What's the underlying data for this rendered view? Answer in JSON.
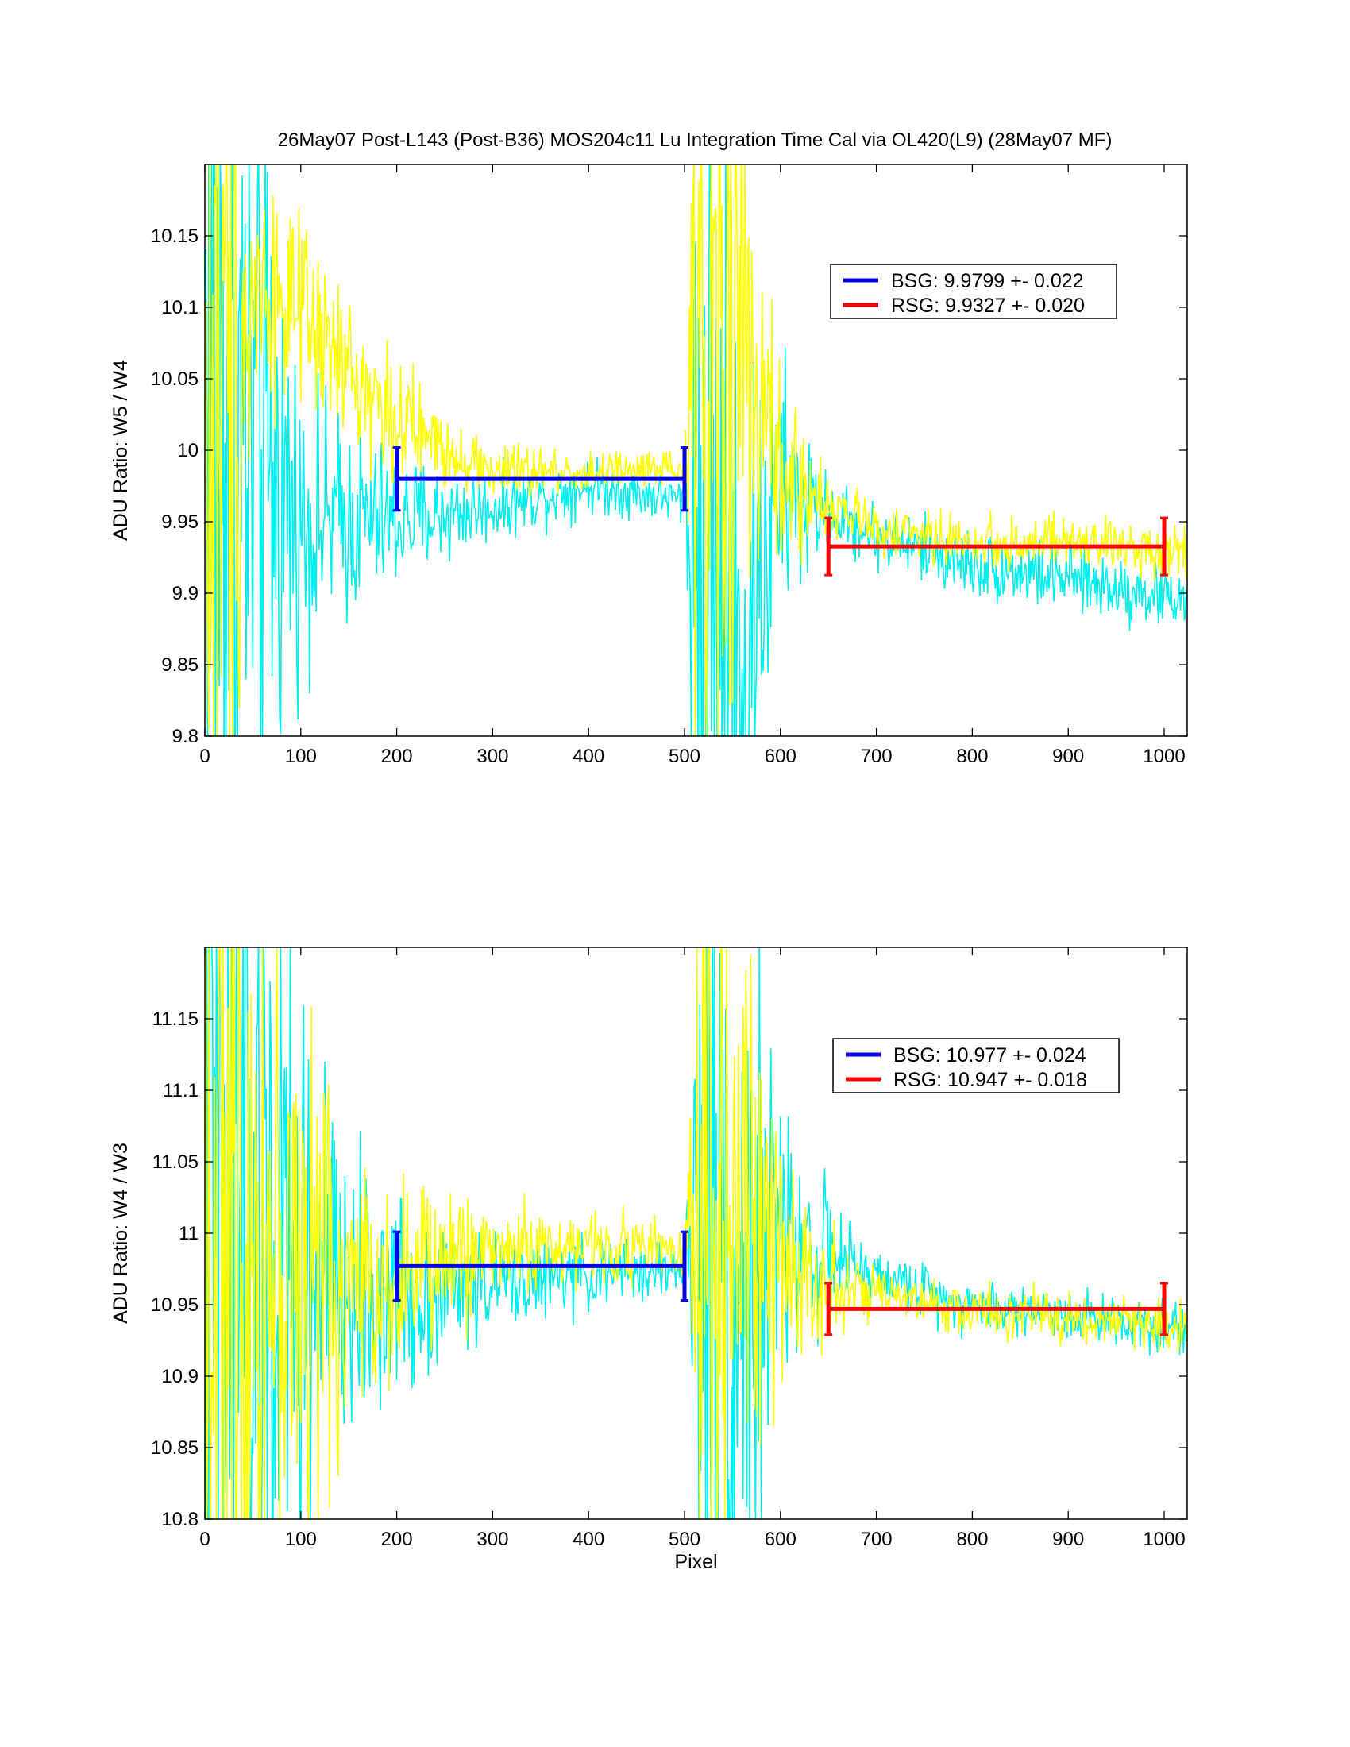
{
  "title": "26May07 Post-L143 (Post-B36)  MOS204c11 Lu Integration Time Cal via OL420(L9)  (28May07 MF)",
  "colors": {
    "trace_a": "#00eeee",
    "trace_b": "#ffff00",
    "bsg": "#0000ee",
    "rsg": "#ff0000"
  },
  "chart_data": [
    {
      "type": "line",
      "title": "26May07 Post-L143 (Post-B36)  MOS204c11 Lu Integration Time Cal via OL420(L9)  (28May07 MF)",
      "xlabel": "",
      "ylabel": "ADU Ratio:  W5  /  W4",
      "xlim": [
        0,
        1024
      ],
      "ylim": [
        9.8,
        10.2
      ],
      "xticks": [
        "0",
        "100",
        "200",
        "300",
        "400",
        "500",
        "600",
        "700",
        "800",
        "900",
        "1000"
      ],
      "yticks": [
        "9.8",
        "9.85",
        "9.9",
        "9.95",
        "10",
        "10.05",
        "10.1",
        "10.15"
      ],
      "grid": false,
      "legend_position": "upper-right",
      "legend": [
        "BSG: 9.9799 +- 0.022",
        "RSG: 9.9327 +- 0.020"
      ],
      "series": [
        {
          "color": "cyan",
          "x_range": [
            1,
            1024
          ],
          "trend": [
            [
              0,
              10.05
            ],
            [
              100,
              9.95
            ],
            [
              200,
              9.95
            ],
            [
              300,
              9.96
            ],
            [
              400,
              9.975
            ],
            [
              500,
              9.965
            ],
            [
              520,
              9.9
            ],
            [
              560,
              9.85
            ],
            [
              600,
              9.97
            ],
            [
              700,
              9.94
            ],
            [
              800,
              9.92
            ],
            [
              900,
              9.91
            ],
            [
              1024,
              9.895
            ]
          ],
          "noise": [
            [
              0,
              0.35
            ],
            [
              100,
              0.06
            ],
            [
              200,
              0.03
            ],
            [
              300,
              0.015
            ],
            [
              500,
              0.01
            ],
            [
              520,
              0.35
            ],
            [
              580,
              0.08
            ],
            [
              650,
              0.015
            ],
            [
              1024,
              0.015
            ]
          ]
        },
        {
          "color": "yellow",
          "x_range": [
            1,
            1024
          ],
          "trend": [
            [
              0,
              10.0
            ],
            [
              60,
              10.12
            ],
            [
              100,
              10.09
            ],
            [
              200,
              10.02
            ],
            [
              300,
              9.985
            ],
            [
              400,
              9.985
            ],
            [
              500,
              9.985
            ],
            [
              520,
              10.1
            ],
            [
              560,
              10.08
            ],
            [
              600,
              9.98
            ],
            [
              700,
              9.945
            ],
            [
              800,
              9.935
            ],
            [
              900,
              9.935
            ],
            [
              1024,
              9.93
            ]
          ],
          "noise": [
            [
              0,
              0.3
            ],
            [
              60,
              0.05
            ],
            [
              200,
              0.025
            ],
            [
              300,
              0.012
            ],
            [
              500,
              0.01
            ],
            [
              520,
              0.3
            ],
            [
              580,
              0.06
            ],
            [
              650,
              0.012
            ],
            [
              1024,
              0.012
            ]
          ]
        }
      ],
      "segments": [
        {
          "name": "BSG",
          "x": [
            200,
            500
          ],
          "y": 9.9799,
          "err": 0.022
        },
        {
          "name": "RSG",
          "x": [
            650,
            1000
          ],
          "y": 9.9327,
          "err": 0.02
        }
      ]
    },
    {
      "type": "line",
      "title": "",
      "xlabel": "Pixel",
      "ylabel": "ADU Ratio:  W4  /  W3",
      "xlim": [
        0,
        1024
      ],
      "ylim": [
        10.8,
        11.2
      ],
      "xticks": [
        "0",
        "100",
        "200",
        "300",
        "400",
        "500",
        "600",
        "700",
        "800",
        "900",
        "1000"
      ],
      "yticks": [
        "10.8",
        "10.85",
        "10.9",
        "10.95",
        "11",
        "11.05",
        "11.1",
        "11.15"
      ],
      "grid": false,
      "legend_position": "upper-right",
      "legend": [
        "BSG: 10.977 +- 0.024",
        "RSG: 10.947 +- 0.018"
      ],
      "series": [
        {
          "color": "cyan",
          "x_range": [
            1,
            1024
          ],
          "trend": [
            [
              0,
              11.0
            ],
            [
              150,
              10.95
            ],
            [
              300,
              10.965
            ],
            [
              500,
              10.975
            ],
            [
              520,
              11.0
            ],
            [
              560,
              10.95
            ],
            [
              600,
              11.0
            ],
            [
              700,
              10.97
            ],
            [
              800,
              10.95
            ],
            [
              1024,
              10.935
            ]
          ],
          "noise": [
            [
              0,
              0.35
            ],
            [
              150,
              0.06
            ],
            [
              300,
              0.02
            ],
            [
              500,
              0.012
            ],
            [
              520,
              0.3
            ],
            [
              600,
              0.06
            ],
            [
              680,
              0.012
            ],
            [
              1024,
              0.012
            ]
          ]
        },
        {
          "color": "yellow",
          "x_range": [
            1,
            1024
          ],
          "trend": [
            [
              0,
              11.0
            ],
            [
              150,
              10.96
            ],
            [
              300,
              10.99
            ],
            [
              500,
              10.99
            ],
            [
              520,
              11.05
            ],
            [
              560,
              11.0
            ],
            [
              600,
              10.98
            ],
            [
              700,
              10.955
            ],
            [
              800,
              10.945
            ],
            [
              1024,
              10.935
            ]
          ],
          "noise": [
            [
              0,
              0.3
            ],
            [
              150,
              0.06
            ],
            [
              300,
              0.02
            ],
            [
              500,
              0.012
            ],
            [
              520,
              0.3
            ],
            [
              600,
              0.05
            ],
            [
              680,
              0.012
            ],
            [
              1024,
              0.012
            ]
          ]
        }
      ],
      "segments": [
        {
          "name": "BSG",
          "x": [
            200,
            500
          ],
          "y": 10.977,
          "err": 0.024
        },
        {
          "name": "RSG",
          "x": [
            650,
            1000
          ],
          "y": 10.947,
          "err": 0.018
        }
      ]
    }
  ]
}
